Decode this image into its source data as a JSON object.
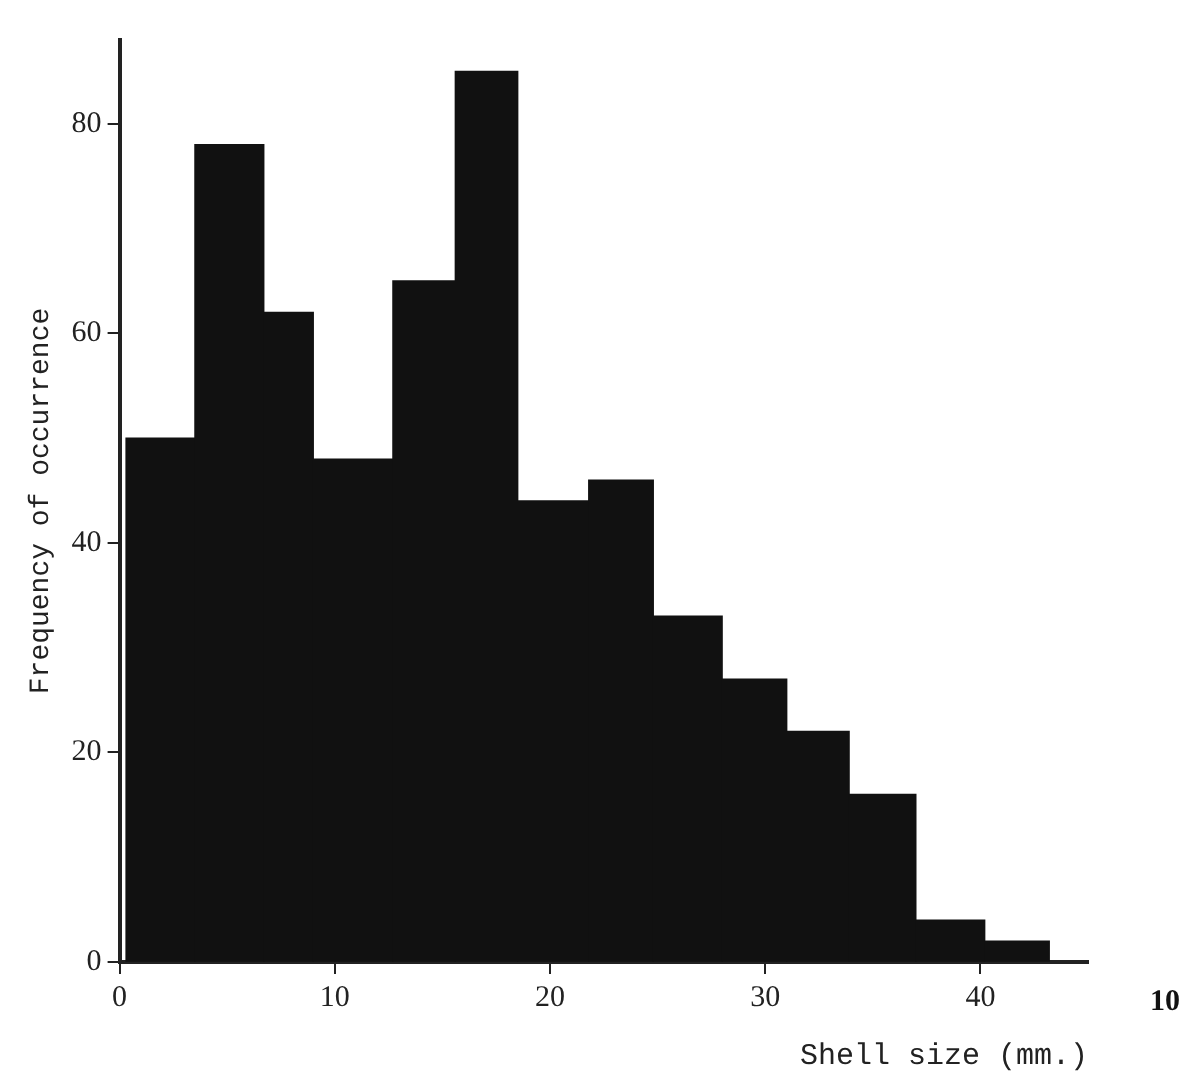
{
  "chart_data": {
    "type": "histogram",
    "xlabel": "Shell size (mm.)",
    "ylabel": "Frequency of occurrence",
    "bins": [
      0.3,
      3.5,
      6.7,
      9.0,
      12.7,
      15.6,
      18.5,
      21.8,
      24.8,
      28.0,
      31.0,
      33.9,
      37.0,
      40.2,
      43.2
    ],
    "values": [
      50,
      78,
      62,
      48,
      65,
      85,
      44,
      46,
      33,
      27,
      22,
      16,
      4,
      2
    ],
    "color": "#111111",
    "xlim": [
      0,
      45
    ],
    "ylim": [
      0,
      88
    ],
    "xticks": [
      0,
      10,
      20,
      30,
      40
    ],
    "yticks": [
      0,
      20,
      40,
      60,
      80
    ],
    "grid": false,
    "legend": false,
    "annotations": [
      "10"
    ]
  }
}
